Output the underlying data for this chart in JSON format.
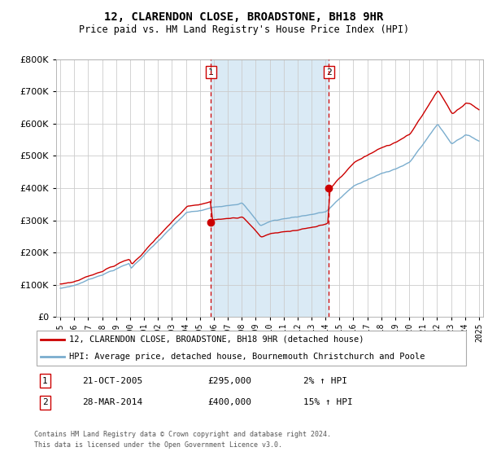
{
  "title": "12, CLARENDON CLOSE, BROADSTONE, BH18 9HR",
  "subtitle": "Price paid vs. HM Land Registry's House Price Index (HPI)",
  "legend_line1": "12, CLARENDON CLOSE, BROADSTONE, BH18 9HR (detached house)",
  "legend_line2": "HPI: Average price, detached house, Bournemouth Christchurch and Poole",
  "annotation1_label": "1",
  "annotation1_date": "21-OCT-2005",
  "annotation1_price": "£295,000",
  "annotation1_hpi": "2% ↑ HPI",
  "annotation2_label": "2",
  "annotation2_date": "28-MAR-2014",
  "annotation2_price": "£400,000",
  "annotation2_hpi": "15% ↑ HPI",
  "sale1_year": 2005.8,
  "sale1_price": 295000,
  "sale2_year": 2014.25,
  "sale2_price": 400000,
  "ylim": [
    0,
    800000
  ],
  "xlim": [
    1994.7,
    2025.3
  ],
  "red_color": "#cc0000",
  "blue_color": "#7aadce",
  "shade_color": "#daeaf5",
  "background_color": "#ffffff",
  "plot_bg_color": "#ffffff",
  "grid_color": "#cccccc",
  "footer": "Contains HM Land Registry data © Crown copyright and database right 2024.\nThis data is licensed under the Open Government Licence v3.0."
}
